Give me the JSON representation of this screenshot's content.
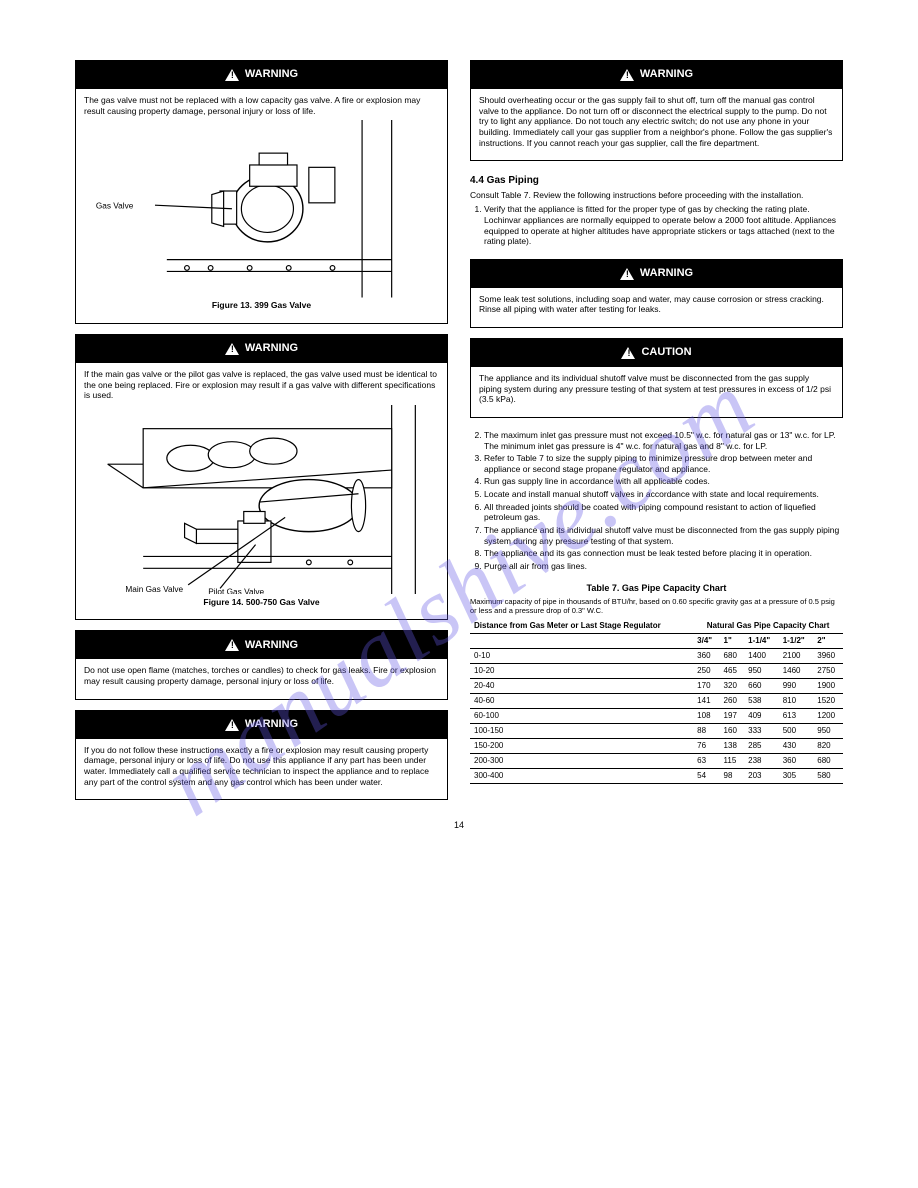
{
  "watermark": "manualshive.com",
  "page_number": "14",
  "left": {
    "warning1": {
      "label": "WARNING",
      "body": "The gas valve must not be replaced with a low capacity gas valve. A fire or explosion may result causing property damage, personal injury or loss of life.",
      "caption": "Figure 13. 399 Gas Valve",
      "callout": "Gas Valve"
    },
    "warning2": {
      "label": "WARNING",
      "body": "If the main gas valve or the pilot gas valve is replaced, the gas valve used must be identical to the one being replaced. Fire or explosion may result if a gas valve with different specifications is used.",
      "caption": "Figure 14. 500-750 Gas Valve",
      "callout1": "Main Gas Valve",
      "callout2": "Pilot Gas Valve"
    },
    "warning3": {
      "label": "WARNING",
      "body": "Do not use open flame (matches, torches or candles) to check for gas leaks. Fire or explosion may result causing property damage, personal injury or loss of life."
    },
    "warning4": {
      "label": "WARNING",
      "body": "If you do not follow these instructions exactly a fire or explosion may result causing property damage, personal injury or loss of life. Do not use this appliance if any part has been under water. Immediately call a qualified service technician to inspect the appliance and to replace any part of the control system and any gas control which has been under water."
    }
  },
  "right": {
    "warning5": {
      "label": "WARNING",
      "body": "Should overheating occur or the gas supply fail to shut off, turn off the manual gas control valve to the appliance. Do not turn off or disconnect the electrical supply to the pump. Do not try to light any appliance. Do not touch any electric switch; do not use any phone in your building. Immediately call your gas supplier from a neighbor's phone. Follow the gas supplier's instructions. If you cannot reach your gas supplier, call the fire department."
    },
    "s44": {
      "head": "4.4 Gas Piping",
      "p1": "Consult Table 7. Review the following instructions before proceeding with the installation.",
      "list": [
        "Verify that the appliance is fitted for the proper type of gas by checking the rating plate. Lochinvar appliances are normally equipped to operate below a 2000 foot altitude. Appliances equipped to operate at higher altitudes have appropriate stickers or tags attached (next to the rating plate)."
      ]
    },
    "warning6": {
      "label": "WARNING",
      "body": "Some leak test solutions, including soap and water, may cause corrosion or stress cracking. Rinse all piping with water after testing for leaks."
    },
    "caution1": {
      "label": "CAUTION",
      "body": "The appliance and its individual shutoff valve must be disconnected from the gas supply piping system during any pressure testing of that system at test pressures in excess of 1/2 psi (3.5 kPa)."
    },
    "s44b": {
      "list": [
        "The maximum inlet gas pressure must not exceed 10.5\" w.c. for natural gas or 13\" w.c. for LP. The minimum inlet gas pressure is 4\" w.c. for natural gas and 8\" w.c. for LP.",
        "Refer to Table 7 to size the supply piping to minimize pressure drop between meter and appliance or second stage propane regulator and appliance.",
        "Run gas supply line in accordance with all applicable codes.",
        "Locate and install manual shutoff valves in accordance with state and local requirements.",
        "All threaded joints should be coated with piping compound resistant to action of liquefied petroleum gas.",
        "The appliance and its individual shutoff valve must be disconnected from the gas supply piping system during any pressure testing of that system.",
        "The appliance and its gas connection must be leak tested before placing it in operation.",
        "Purge all air from gas lines."
      ]
    },
    "table": {
      "title": "Table 7. Gas Pipe Capacity Chart",
      "subtitle": "Maximum capacity of pipe in thousands of BTU/hr, based on 0.60 specific gravity gas at a pressure of 0.5 psig or less and a pressure drop of 0.3\" W.C.",
      "head_left": "Distance from Gas Meter or Last Stage Regulator",
      "head_right": "Natural Gas Pipe Capacity Chart",
      "cols": [
        "",
        "3/4\"",
        "1\"",
        "1-1/4\"",
        "1-1/2\"",
        "2\""
      ],
      "rows": [
        [
          "0-10",
          "360",
          "680",
          "1400",
          "2100",
          "3960"
        ],
        [
          "10-20",
          "250",
          "465",
          "950",
          "1460",
          "2750"
        ],
        [
          "20-40",
          "170",
          "320",
          "660",
          "990",
          "1900"
        ],
        [
          "40-60",
          "141",
          "260",
          "538",
          "810",
          "1520"
        ],
        [
          "60-100",
          "108",
          "197",
          "409",
          "613",
          "1200"
        ],
        [
          "100-150",
          "88",
          "160",
          "333",
          "500",
          "950"
        ],
        [
          "150-200",
          "76",
          "138",
          "285",
          "430",
          "820"
        ],
        [
          "200-300",
          "63",
          "115",
          "238",
          "360",
          "680"
        ],
        [
          "300-400",
          "54",
          "98",
          "203",
          "305",
          "580"
        ]
      ]
    }
  }
}
